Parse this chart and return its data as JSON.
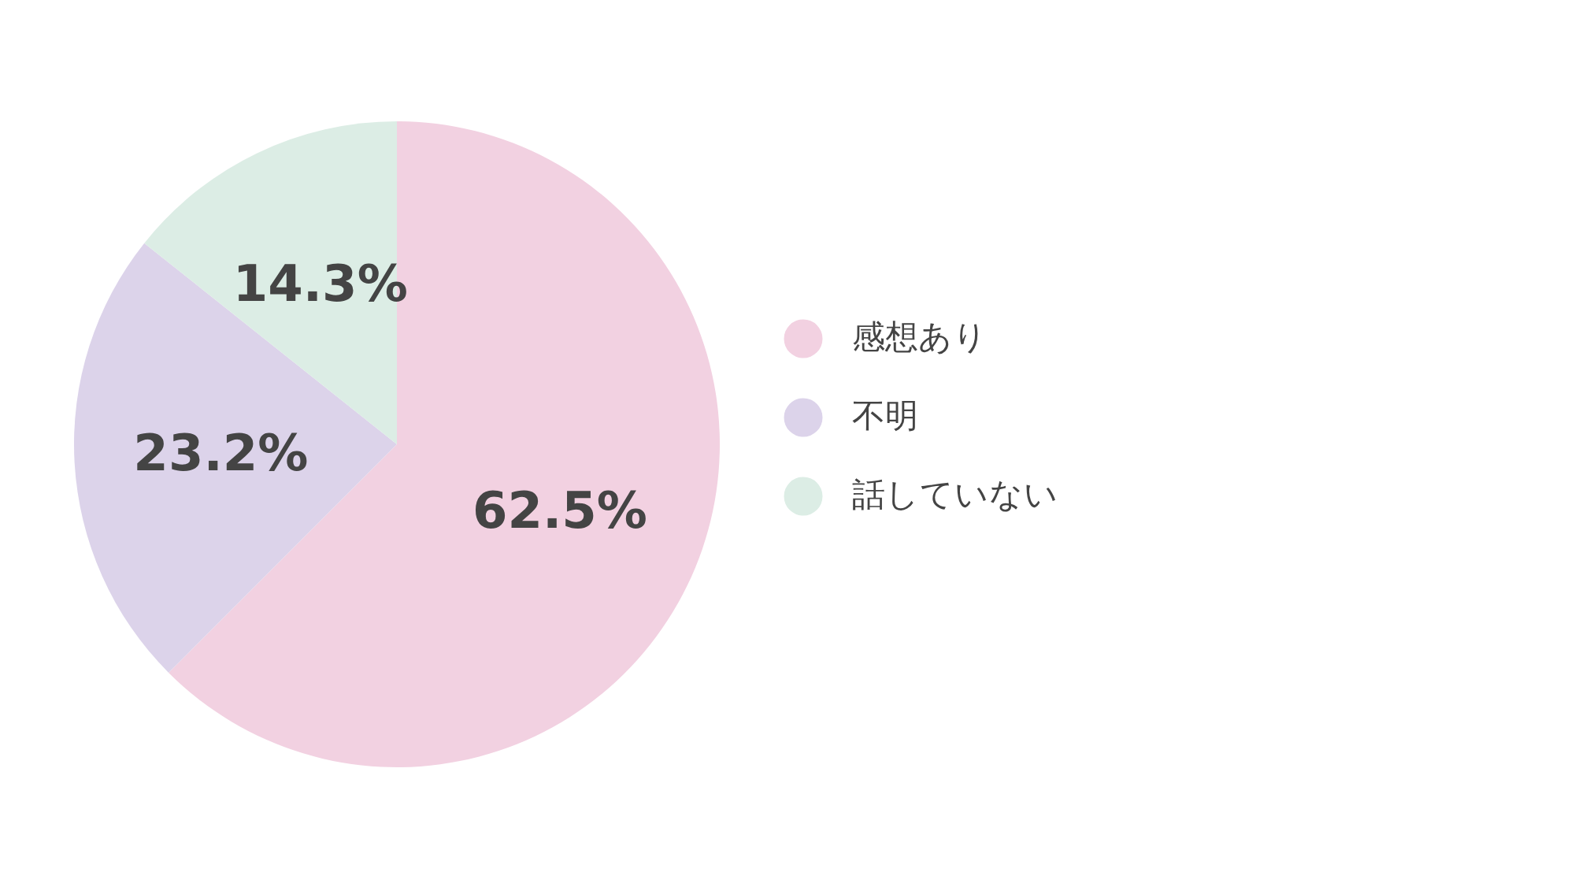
{
  "chart_data": {
    "type": "pie",
    "categories": [
      "感想あり",
      "不明",
      "話していない"
    ],
    "values": [
      62.5,
      23.2,
      14.3
    ],
    "colors": [
      "#f2d1e1",
      "#dcd3ea",
      "#dcede5"
    ],
    "value_labels": [
      "62.5%",
      "23.2%",
      "14.3%"
    ],
    "legend": "right"
  }
}
